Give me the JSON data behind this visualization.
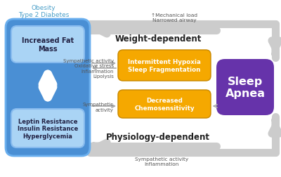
{
  "obesity_label": "Obesity\nType 2 Diabetes",
  "obesity_label_color": "#4a9fc8",
  "outer_box_face": "#4a8fd4",
  "outer_box_edge": "#6aafee",
  "fat_mass_box_face": "#aad4f5",
  "fat_mass_box_edge": "#88bbee",
  "fat_mass_text": "Increased Fat\nMass",
  "resistance_box_face": "#aad4f5",
  "resistance_box_edge": "#88bbee",
  "resistance_text": "Leptin Resistance\nInsulin Resistance\nHyperglycemia",
  "sleep_apnea_box_face": "#6633aa",
  "sleep_apnea_text": "Sleep\nApnea",
  "hypoxia_box_face": "#f5a800",
  "hypoxia_box_edge": "#c88800",
  "hypoxia_text": "Intermittent Hypoxia\nSleep Fragmentation",
  "chemo_box_face": "#f5a800",
  "chemo_box_edge": "#c88800",
  "chemo_text": "Decreased\nChemosensitivity",
  "weight_dep_text": "Weight-dependent",
  "physio_dep_text": "Physiology-dependent",
  "mechanical_text": "↑Mechanical load\nNarrowed airway",
  "sympathetic_text1": "Sympathetic activity\nOxidative stress\nInflammation\nLipolysis",
  "sympathetic_text2": "Sympathetic\nactivity",
  "sympathetic_text3": "Sympathetic activity\nInflammation",
  "gray": "#bbbbbb",
  "dark_gray": "#999999",
  "white": "#ffffff",
  "text_dark": "#222244"
}
